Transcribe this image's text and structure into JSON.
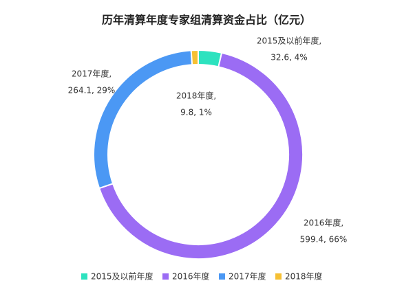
{
  "chart_data": {
    "type": "donut",
    "title": "历年清算年度专家组清算资金占比（亿元）",
    "categories": [
      "2015及以前年度",
      "2016年度",
      "2017年度",
      "2018年度"
    ],
    "values": [
      32.6,
      599.4,
      264.1,
      9.8
    ],
    "colors": [
      "#2de2bf",
      "#9b6cf4",
      "#4b98f4",
      "#f6c033"
    ],
    "label_titles": [
      "2015及以前年度,",
      "2016年度,",
      "2017年度,",
      "2018年度,"
    ],
    "value_labels": [
      "32.6, 4%",
      "599.4, 66%",
      "264.1, 29%",
      "9.8, 1%"
    ],
    "legend": "bottom"
  }
}
